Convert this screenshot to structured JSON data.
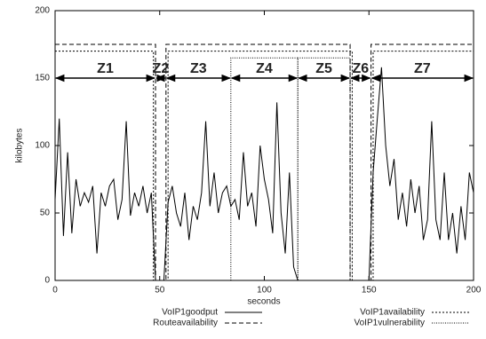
{
  "chart_data": {
    "type": "line",
    "xlabel": "seconds",
    "ylabel": "kilobytes",
    "xlim": [
      0,
      200
    ],
    "ylim": [
      0,
      200
    ],
    "xticks": [
      0,
      50,
      100,
      150,
      200
    ],
    "yticks": [
      0,
      50,
      100,
      150,
      200
    ],
    "zones": [
      {
        "label": "Z1",
        "start": 0,
        "end": 48,
        "level": 150
      },
      {
        "label": "Z2",
        "start": 48,
        "end": 53,
        "level": 150
      },
      {
        "label": "Z3",
        "start": 53,
        "end": 84,
        "level": 150
      },
      {
        "label": "Z4",
        "start": 84,
        "end": 116,
        "level": 150
      },
      {
        "label": "Z5",
        "start": 116,
        "end": 141,
        "level": 150
      },
      {
        "label": "Z6",
        "start": 141,
        "end": 151,
        "level": 150
      },
      {
        "label": "Z7",
        "start": 151,
        "end": 200,
        "level": 150
      }
    ],
    "series": [
      {
        "name": "VoIP1goodput",
        "color": "#000000",
        "dash": "none",
        "x": [
          0,
          2,
          4,
          6,
          8,
          10,
          12,
          14,
          16,
          18,
          20,
          22,
          24,
          26,
          28,
          30,
          32,
          34,
          36,
          38,
          40,
          42,
          44,
          46,
          48,
          50,
          52,
          54,
          56,
          58,
          60,
          62,
          64,
          66,
          68,
          70,
          72,
          74,
          76,
          78,
          80,
          82,
          84,
          86,
          88,
          90,
          92,
          94,
          96,
          98,
          100,
          102,
          104,
          106,
          108,
          110,
          112,
          114,
          116,
          118,
          120,
          122,
          124,
          126,
          128,
          130,
          132,
          134,
          136,
          138,
          140,
          142,
          144,
          146,
          148,
          150,
          152,
          154,
          156,
          158,
          160,
          162,
          164,
          166,
          168,
          170,
          172,
          174,
          176,
          178,
          180,
          182,
          184,
          186,
          188,
          190,
          192,
          194,
          196,
          198,
          200
        ],
        "values": [
          60,
          120,
          33,
          95,
          35,
          75,
          55,
          65,
          58,
          70,
          20,
          65,
          55,
          70,
          75,
          45,
          60,
          118,
          48,
          65,
          55,
          70,
          50,
          65,
          0,
          0,
          0,
          58,
          70,
          50,
          40,
          65,
          30,
          55,
          45,
          65,
          118,
          55,
          80,
          50,
          65,
          70,
          55,
          60,
          45,
          95,
          55,
          65,
          40,
          100,
          75,
          60,
          35,
          132,
          50,
          20,
          80,
          10,
          0,
          0,
          0,
          0,
          0,
          0,
          0,
          0,
          0,
          0,
          0,
          0,
          0,
          0,
          0,
          0,
          0,
          0,
          80,
          120,
          158,
          100,
          70,
          90,
          45,
          65,
          40,
          75,
          50,
          70,
          30,
          45,
          118,
          45,
          30,
          80,
          30,
          50,
          20,
          55,
          30,
          80,
          65
        ]
      },
      {
        "name": "Routeavailability",
        "color": "#000000",
        "dash": "5,3",
        "x": [
          0,
          48,
          48,
          53,
          53,
          141,
          141,
          151,
          151,
          200
        ],
        "values": [
          175,
          175,
          0,
          0,
          175,
          175,
          0,
          0,
          175,
          175
        ]
      },
      {
        "name": "VoIP1availability",
        "color": "#000000",
        "dash": "2,2",
        "x": [
          0,
          47,
          47,
          54,
          54,
          142,
          142,
          152,
          152,
          200
        ],
        "values": [
          170,
          170,
          0,
          0,
          170,
          170,
          0,
          0,
          170,
          170
        ]
      },
      {
        "name": "VoIP1vulnerability",
        "color": "#000000",
        "dash": "1,1.5",
        "x": [
          84,
          84,
          116,
          116,
          116,
          141,
          141
        ],
        "values": [
          0,
          165,
          165,
          0,
          165,
          165,
          0
        ]
      }
    ]
  }
}
